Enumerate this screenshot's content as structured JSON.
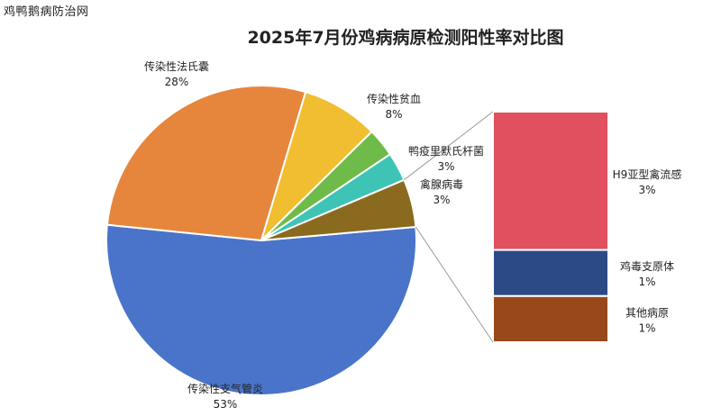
{
  "watermark": "鸡鸭鹅病防治网",
  "chart_data": {
    "type": "bar-of-pie",
    "title": "2025年7月份鸡病病原检测阳性率对比图",
    "pie": [
      {
        "name": "传染性支气管炎",
        "value": 53,
        "label": "53%",
        "color": "#4a74c9"
      },
      {
        "name": "传染性法氏囊",
        "value": 28,
        "label": "28%",
        "color": "#e6863c"
      },
      {
        "name": "传染性贫血",
        "value": 8,
        "label": "8%",
        "color": "#f0be30"
      },
      {
        "name": "鸭疫里默氏杆菌",
        "value": 3,
        "label": "3%",
        "color": "#6fbb4a"
      },
      {
        "name": "禽腺病毒",
        "value": 3,
        "label": "3%",
        "color": "#3ec4b4"
      },
      {
        "name": "其他",
        "value": 5,
        "label": "",
        "color": "#8a6a1e"
      }
    ],
    "bar": [
      {
        "name": "H9亚型禽流感",
        "value": 3,
        "label": "3%",
        "color": "#e0505e"
      },
      {
        "name": "鸡毒支原体",
        "value": 1,
        "label": "1%",
        "color": "#2c4a86"
      },
      {
        "name": "其他病原",
        "value": 1,
        "label": "1%",
        "color": "#99481c"
      }
    ]
  }
}
